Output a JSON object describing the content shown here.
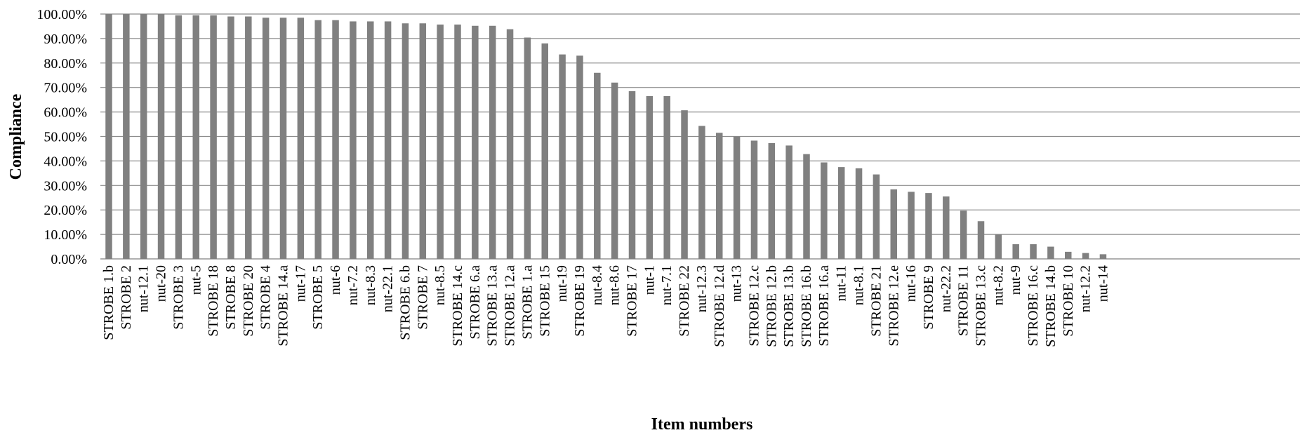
{
  "chart_data": {
    "type": "bar",
    "xlabel": "Item numbers",
    "ylabel": "Compliance",
    "ylim": [
      0,
      100
    ],
    "ytick_values": [
      0,
      10,
      20,
      30,
      40,
      50,
      60,
      70,
      80,
      90,
      100
    ],
    "ytick_labels": [
      "0.00%",
      "10.00%",
      "20.00%",
      "30.00%",
      "40.00%",
      "50.00%",
      "60.00%",
      "70.00%",
      "80.00%",
      "90.00%",
      "100.00%"
    ],
    "grid": true,
    "bar_color": "#808080",
    "categories": [
      "STROBE 1.b",
      "STROBE 2",
      "nut-12.1",
      "nut-20",
      "STROBE 3",
      "nut-5",
      "STROBE 18",
      "STROBE 8",
      "STROBE 20",
      "STROBE 4",
      "STROBE 14.a",
      "nut-17",
      "STROBE 5",
      "nut-6",
      "nut-7.2",
      "nut-8.3",
      "nut-22.1",
      "STROBE 6.b",
      "STROBE 7",
      "nut-8.5",
      "STROBE 14.c",
      "STROBE 6.a",
      "STROBE 13.a",
      "STROBE 12.a",
      "STROBE 1.a",
      "STROBE 15",
      "nut-19",
      "STROBE 19",
      "nut-8.4",
      "nut-8.6",
      "STROBE 17",
      "nut-1",
      "nut-7.1",
      "STROBE 22",
      "nut-12.3",
      "STROBE 12.d",
      "nut-13",
      "STROBE 12.c",
      "STROBE 12.b",
      "STROBE 13.b",
      "STROBE 16.b",
      "STROBE 16.a",
      "nut-11",
      "nut-8.1",
      "STROBE 21",
      "STROBE 12.e",
      "nut-16",
      "STROBE 9",
      "nut-22.2",
      "STROBE 11",
      "STROBE 13.c",
      "nut-8.2",
      "nut-9",
      "STROBE 16.c",
      "STROBE 14.b",
      "STROBE 10",
      "nut-12.2",
      "nut-14"
    ],
    "values": [
      100,
      100,
      100,
      100,
      99.5,
      99.5,
      99.5,
      99,
      99,
      98.5,
      98.5,
      98.5,
      97.5,
      97.5,
      97,
      97,
      97,
      96.2,
      96.2,
      95.7,
      95.7,
      95.2,
      95.2,
      93.8,
      90.4,
      88,
      83.5,
      83,
      76,
      72,
      68.5,
      66.5,
      66.5,
      60.7,
      54.3,
      51.5,
      50,
      48.3,
      47.3,
      46.3,
      42.8,
      39.4,
      37.5,
      37,
      34.5,
      28.4,
      27.4,
      26.9,
      25.5,
      19.7,
      15.4,
      10,
      6,
      6,
      5,
      2.9,
      2.4,
      1.9
    ]
  }
}
